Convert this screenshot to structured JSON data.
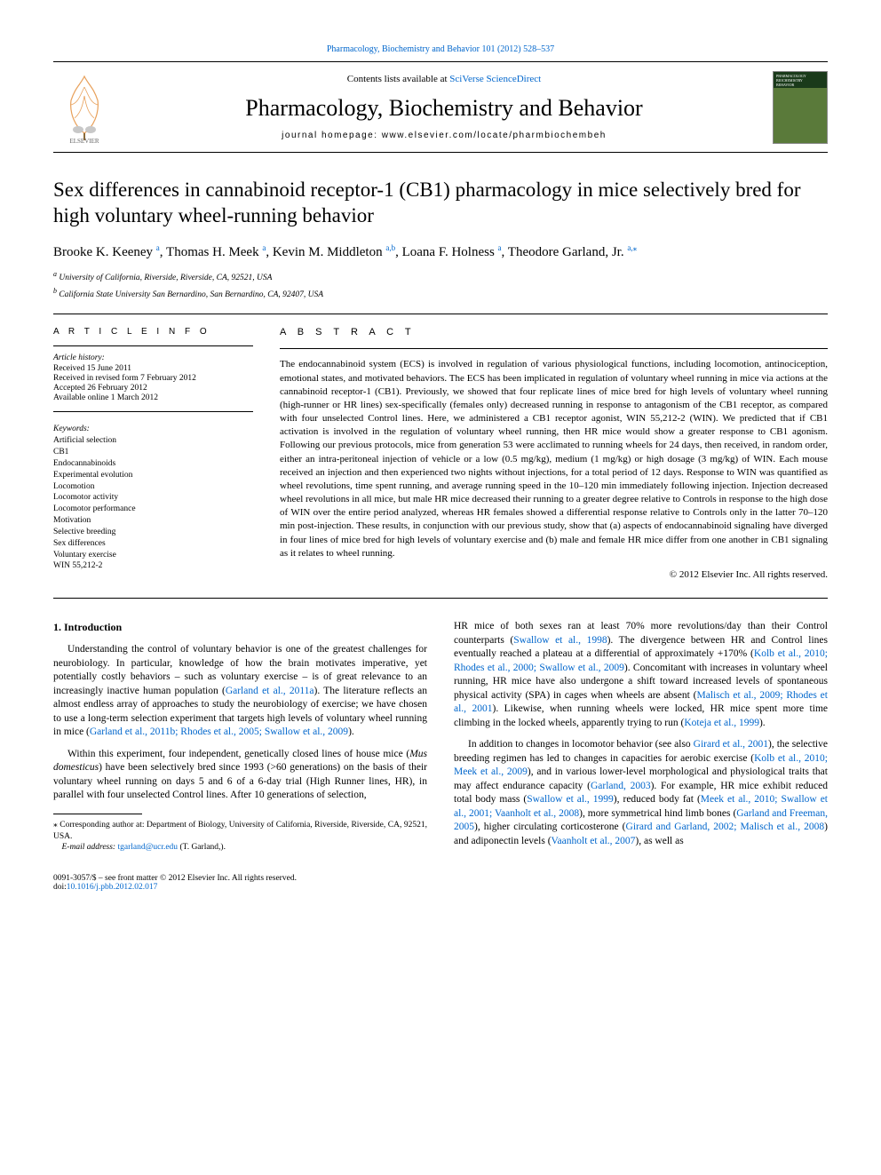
{
  "top_link": {
    "prefix": "",
    "journal": "Pharmacology, Biochemistry and Behavior 101 (2012) 528–537"
  },
  "header": {
    "contents_prefix": "Contents lists available at ",
    "contents_link": "SciVerse ScienceDirect",
    "journal_name": "Pharmacology, Biochemistry and Behavior",
    "homepage_label": "journal homepage: ",
    "homepage_url": "www.elsevier.com/locate/pharmbiochembeh"
  },
  "title": "Sex differences in cannabinoid receptor-1 (CB1) pharmacology in mice selectively bred for high voluntary wheel-running behavior",
  "authors": [
    {
      "name": "Brooke K. Keeney",
      "sup": "a"
    },
    {
      "name": "Thomas H. Meek",
      "sup": "a"
    },
    {
      "name": "Kevin M. Middleton",
      "sup": "a,b"
    },
    {
      "name": "Loana F. Holness",
      "sup": "a"
    },
    {
      "name": "Theodore Garland, Jr.",
      "sup": "a,",
      "corr": true
    }
  ],
  "affiliations": [
    {
      "sup": "a",
      "text": "University of California, Riverside, Riverside, CA, 92521, USA"
    },
    {
      "sup": "b",
      "text": "California State University San Bernardino, San Bernardino, CA, 92407, USA"
    }
  ],
  "article_info_label": "A R T I C L E   I N F O",
  "abstract_label": "A B S T R A C T",
  "history": {
    "label": "Article history:",
    "lines": [
      "Received 15 June 2011",
      "Received in revised form 7 February 2012",
      "Accepted 26 February 2012",
      "Available online 1 March 2012"
    ]
  },
  "keywords": {
    "label": "Keywords:",
    "items": [
      "Artificial selection",
      "CB1",
      "Endocannabinoids",
      "Experimental evolution",
      "Locomotion",
      "Locomotor activity",
      "Locomotor performance",
      "Motivation",
      "Selective breeding",
      "Sex differences",
      "Voluntary exercise",
      "WIN 55,212-2"
    ]
  },
  "abstract": "The endocannabinoid system (ECS) is involved in regulation of various physiological functions, including locomotion, antinociception, emotional states, and motivated behaviors. The ECS has been implicated in regulation of voluntary wheel running in mice via actions at the cannabinoid receptor-1 (CB1). Previously, we showed that four replicate lines of mice bred for high levels of voluntary wheel running (high-runner or HR lines) sex-specifically (females only) decreased running in response to antagonism of the CB1 receptor, as compared with four unselected Control lines. Here, we administered a CB1 receptor agonist, WIN 55,212-2 (WIN). We predicted that if CB1 activation is involved in the regulation of voluntary wheel running, then HR mice would show a greater response to CB1 agonism. Following our previous protocols, mice from generation 53 were acclimated to running wheels for 24 days, then received, in random order, either an intra-peritoneal injection of vehicle or a low (0.5 mg/kg), medium (1 mg/kg) or high dosage (3 mg/kg) of WIN. Each mouse received an injection and then experienced two nights without injections, for a total period of 12 days. Response to WIN was quantified as wheel revolutions, time spent running, and average running speed in the 10–120 min immediately following injection. Injection decreased wheel revolutions in all mice, but male HR mice decreased their running to a greater degree relative to Controls in response to the high dose of WIN over the entire period analyzed, whereas HR females showed a differential response relative to Controls only in the latter 70–120 min post-injection. These results, in conjunction with our previous study, show that (a) aspects of endocannabinoid signaling have diverged in four lines of mice bred for high levels of voluntary exercise and (b) male and female HR mice differ from one another in CB1 signaling as it relates to wheel running.",
  "copyright": "© 2012 Elsevier Inc. All rights reserved.",
  "intro_head": "1. Introduction",
  "col1": [
    "Understanding the control of voluntary behavior is one of the greatest challenges for neurobiology. In particular, knowledge of how the brain motivates imperative, yet potentially costly behaviors – such as voluntary exercise – is of great relevance to an increasingly inactive human population (<span class='ref'>Garland et al., 2011a</span>). The literature reflects an almost endless array of approaches to study the neurobiology of exercise; we have chosen to use a long-term selection experiment that targets high levels of voluntary wheel running in mice (<span class='ref'>Garland et al., 2011b; Rhodes et al., 2005; Swallow et al., 2009</span>).",
    "Within this experiment, four independent, genetically closed lines of house mice (<i>Mus domesticus</i>) have been selectively bred since 1993 (>60 generations) on the basis of their voluntary wheel running on days 5 and 6 of a 6-day trial (High Runner lines, HR), in parallel with four unselected Control lines. After 10 generations of selection,"
  ],
  "col2": [
    "HR mice of both sexes ran at least 70% more revolutions/day than their Control counterparts (<span class='ref'>Swallow et al., 1998</span>). The divergence between HR and Control lines eventually reached a plateau at a differential of approximately +170% (<span class='ref'>Kolb et al., 2010; Rhodes et al., 2000; Swallow et al., 2009</span>). Concomitant with increases in voluntary wheel running, HR mice have also undergone a shift toward increased levels of spontaneous physical activity (SPA) in cages when wheels are absent (<span class='ref'>Malisch et al., 2009; Rhodes et al., 2001</span>). Likewise, when running wheels were locked, HR mice spent more time climbing in the locked wheels, apparently trying to run (<span class='ref'>Koteja et al., 1999</span>).",
    "In addition to changes in locomotor behavior (see also <span class='ref'>Girard et al., 2001</span>), the selective breeding regimen has led to changes in capacities for aerobic exercise (<span class='ref'>Kolb et al., 2010; Meek et al., 2009</span>), and in various lower-level morphological and physiological traits that may affect endurance capacity (<span class='ref'>Garland, 2003</span>). For example, HR mice exhibit reduced total body mass (<span class='ref'>Swallow et al., 1999</span>), reduced body fat (<span class='ref'>Meek et al., 2010; Swallow et al., 2001; Vaanholt et al., 2008</span>), more symmetrical hind limb bones (<span class='ref'>Garland and Freeman, 2005</span>), higher circulating corticosterone (<span class='ref'>Girard and Garland, 2002; Malisch et al., 2008</span>) and adiponectin levels (<span class='ref'>Vaanholt et al., 2007</span>), as well as"
  ],
  "corr": {
    "star": "⁎",
    "text": "Corresponding author at: Department of Biology, University of California, Riverside, Riverside, CA, 92521, USA.",
    "email_label": "E-mail address:",
    "email": "tgarland@ucr.edu",
    "email_suffix": "(T. Garland,)."
  },
  "footer": {
    "line1": "0091-3057/$ – see front matter © 2012 Elsevier Inc. All rights reserved.",
    "doi_label": "doi:",
    "doi": "10.1016/j.pbb.2012.02.017"
  },
  "colors": {
    "link": "#0066cc",
    "text": "#000000",
    "tree_orange": "#e8a05a",
    "cover_green": "#5a7a3a"
  }
}
